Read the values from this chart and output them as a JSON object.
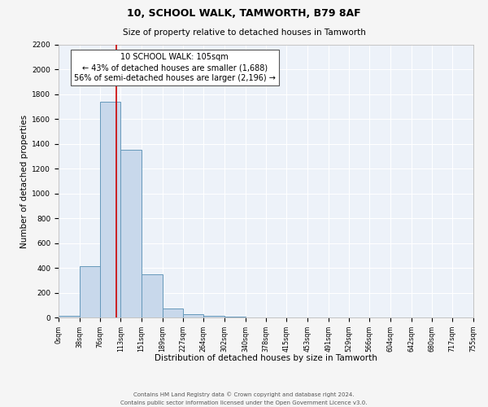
{
  "title": "10, SCHOOL WALK, TAMWORTH, B79 8AF",
  "subtitle": "Size of property relative to detached houses in Tamworth",
  "xlabel": "Distribution of detached houses by size in Tamworth",
  "ylabel": "Number of detached properties",
  "bar_color": "#c8d8eb",
  "bar_edge_color": "#6699bb",
  "bg_color": "#edf2f9",
  "grid_color": "#ffffff",
  "vline_x": 105,
  "vline_color": "#cc0000",
  "annotation_title": "10 SCHOOL WALK: 105sqm",
  "annotation_line1": "← 43% of detached houses are smaller (1,688)",
  "annotation_line2": "56% of semi-detached houses are larger (2,196) →",
  "annotation_box_color": "#ffffff",
  "annotation_box_edge": "#555555",
  "bins": [
    0,
    38,
    76,
    113,
    151,
    189,
    227,
    264,
    302,
    340,
    378,
    415,
    453,
    491,
    529,
    566,
    604,
    642,
    680,
    717,
    755
  ],
  "counts": [
    15,
    415,
    1740,
    1350,
    345,
    75,
    25,
    10,
    5,
    0,
    0,
    0,
    0,
    0,
    0,
    0,
    0,
    0,
    0,
    0
  ],
  "ylim": [
    0,
    2200
  ],
  "yticks": [
    0,
    200,
    400,
    600,
    800,
    1000,
    1200,
    1400,
    1600,
    1800,
    2000,
    2200
  ],
  "footer1": "Contains HM Land Registry data © Crown copyright and database right 2024.",
  "footer2": "Contains public sector information licensed under the Open Government Licence v3.0."
}
